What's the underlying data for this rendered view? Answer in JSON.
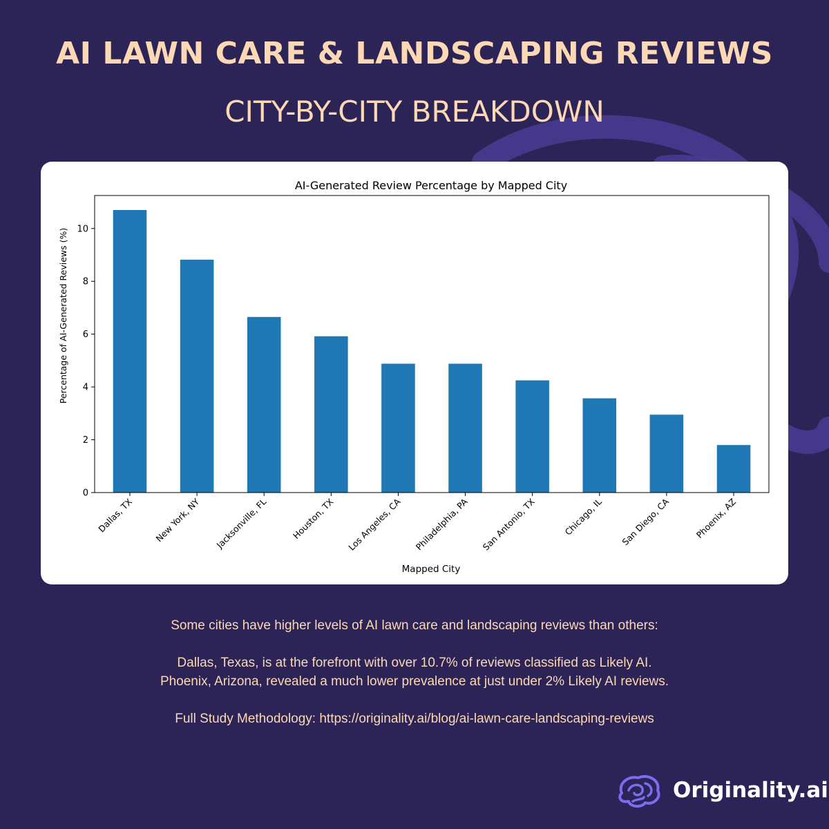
{
  "header": {
    "title": "AI LAWN CARE & LANDSCAPING REVIEWS",
    "subtitle": "CITY-BY-CITY BREAKDOWN"
  },
  "chart_data": {
    "type": "bar",
    "title": "AI-Generated Review Percentage by Mapped City",
    "xlabel": "Mapped City",
    "ylabel": "Percentage of AI-Generated Reviews (%)",
    "categories": [
      "Dallas, TX",
      "New York, NY",
      "Jacksonville, FL",
      "Houston, TX",
      "Los Angeles, CA",
      "Philadelphia, PA",
      "San Antonio, TX",
      "Chicago, IL",
      "San Diego, CA",
      "Phoenix, AZ"
    ],
    "values": [
      10.7,
      8.82,
      6.65,
      5.92,
      4.88,
      4.88,
      4.25,
      3.57,
      2.95,
      1.8
    ],
    "yticks": [
      0,
      2,
      4,
      6,
      8,
      10
    ],
    "ylim": [
      0,
      11.25
    ],
    "bar_color": "#1f77b4"
  },
  "caption": {
    "intro": "Some cities have higher levels of AI lawn care and landscaping reviews than others:",
    "line1": "Dallas, Texas, is at the forefront with over 10.7% of reviews classified as Likely AI.",
    "line2": "Phoenix, Arizona, revealed a much lower prevalence at just under 2% Likely AI reviews.",
    "methodology": "Full Study Methodology: https://originality.ai/blog/ai-lawn-care-landscaping-reviews"
  },
  "brand": {
    "name": "Originality.ai",
    "logo_icon": "brain-icon",
    "accent": "#7b6cf0"
  },
  "colors": {
    "background": "#2c2356",
    "heading": "#fcd9b4"
  }
}
